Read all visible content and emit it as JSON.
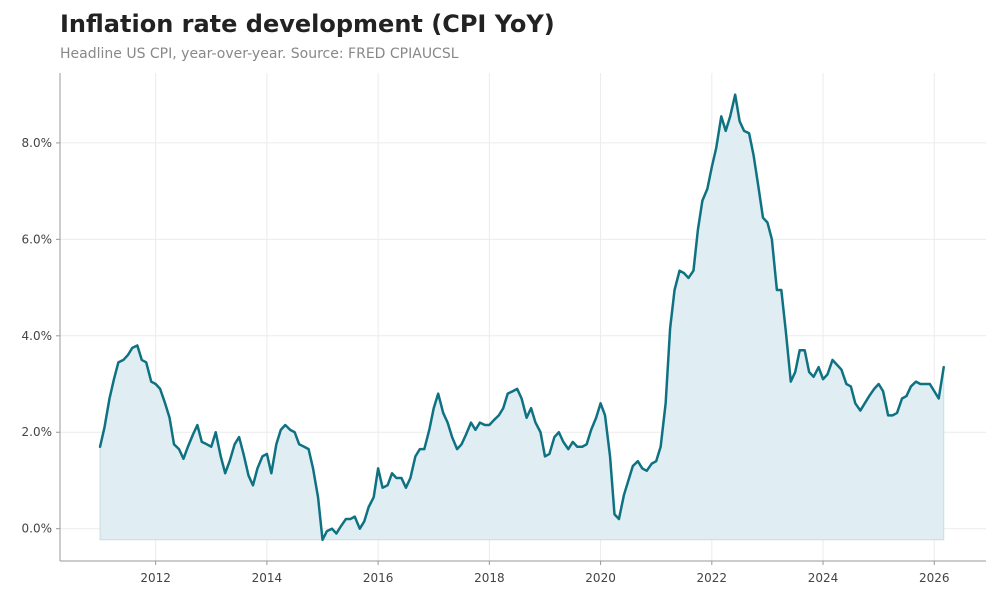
{
  "chart_data": {
    "type": "area",
    "title": "Inflation rate development (CPI YoY)",
    "subtitle": "Headline US CPI, year-over-year. Source: FRED CPIAUCSL",
    "xlabel": "",
    "ylabel": "",
    "xlim": [
      2010.28,
      2026.93
    ],
    "ylim": [
      -0.67,
      9.45
    ],
    "x_ticks": [
      2012,
      2014,
      2016,
      2018,
      2020,
      2022,
      2024,
      2026
    ],
    "x_tick_labels": [
      "2012",
      "2014",
      "2016",
      "2018",
      "2020",
      "2022",
      "2024",
      "2026"
    ],
    "y_ticks": [
      0,
      2,
      4,
      6,
      8
    ],
    "y_tick_labels": [
      "0.0%",
      "2.0%",
      "4.0%",
      "6.0%",
      "8.0%"
    ],
    "grid": true,
    "line_color": "#0f7282",
    "fill_color": "#e0edf2",
    "fill_baseline": -0.23,
    "series": [
      {
        "x": [
          2011.0,
          2011.08,
          2011.17,
          2011.25,
          2011.33,
          2011.42,
          2011.5,
          2011.58,
          2011.67,
          2011.75,
          2011.83,
          2011.92,
          2012.0,
          2012.08,
          2012.17,
          2012.25,
          2012.33,
          2012.42,
          2012.5,
          2012.58,
          2012.67,
          2012.75,
          2012.83,
          2012.92,
          2013.0,
          2013.08,
          2013.17,
          2013.25,
          2013.33,
          2013.42,
          2013.5,
          2013.58,
          2013.67,
          2013.75,
          2013.83,
          2013.92,
          2014.0,
          2014.08,
          2014.17,
          2014.25,
          2014.33,
          2014.42,
          2014.5,
          2014.58,
          2014.67,
          2014.75,
          2014.83,
          2014.92,
          2015.0,
          2015.08,
          2015.17,
          2015.25,
          2015.33,
          2015.42,
          2015.5,
          2015.58,
          2015.67,
          2015.75,
          2015.83,
          2015.92,
          2016.0,
          2016.08,
          2016.17,
          2016.25,
          2016.33,
          2016.42,
          2016.5,
          2016.58,
          2016.67,
          2016.75,
          2016.83,
          2016.92,
          2017.0,
          2017.08,
          2017.17,
          2017.25,
          2017.33,
          2017.42,
          2017.5,
          2017.58,
          2017.67,
          2017.75,
          2017.83,
          2017.92,
          2018.0,
          2018.08,
          2018.17,
          2018.25,
          2018.33,
          2018.42,
          2018.5,
          2018.58,
          2018.67,
          2018.75,
          2018.83,
          2018.92,
          2019.0,
          2019.08,
          2019.17,
          2019.25,
          2019.33,
          2019.42,
          2019.5,
          2019.58,
          2019.67,
          2019.75,
          2019.83,
          2019.92,
          2020.0,
          2020.08,
          2020.17,
          2020.25,
          2020.33,
          2020.42,
          2020.5,
          2020.58,
          2020.67,
          2020.75,
          2020.83,
          2020.92,
          2021.0,
          2021.08,
          2021.17,
          2021.25,
          2021.33,
          2021.42,
          2021.5,
          2021.58,
          2021.67,
          2021.75,
          2021.83,
          2021.92,
          2022.0,
          2022.08,
          2022.17,
          2022.25,
          2022.33,
          2022.42,
          2022.5,
          2022.58,
          2022.67,
          2022.75,
          2022.83,
          2022.92,
          2023.0,
          2023.08,
          2023.17,
          2023.25,
          2023.33,
          2023.42,
          2023.5,
          2023.58,
          2023.67,
          2023.75,
          2023.83,
          2023.92,
          2024.0,
          2024.08,
          2024.17,
          2024.25,
          2024.33,
          2024.42,
          2024.5,
          2024.58,
          2024.67,
          2024.75,
          2024.83,
          2024.92,
          2025.0,
          2025.08,
          2025.17,
          2025.25,
          2025.33,
          2025.42,
          2025.5,
          2025.58,
          2025.67,
          2025.75,
          2025.83,
          2025.92,
          2026.0,
          2026.08,
          2026.17
        ],
        "values": [
          1.7,
          2.1,
          2.7,
          3.1,
          3.45,
          3.5,
          3.6,
          3.75,
          3.8,
          3.5,
          3.45,
          3.05,
          3.0,
          2.9,
          2.6,
          2.3,
          1.75,
          1.65,
          1.45,
          1.7,
          1.95,
          2.15,
          1.8,
          1.75,
          1.7,
          2.0,
          1.5,
          1.15,
          1.4,
          1.75,
          1.9,
          1.55,
          1.1,
          0.9,
          1.25,
          1.5,
          1.55,
          1.15,
          1.75,
          2.05,
          2.15,
          2.05,
          2.0,
          1.75,
          1.7,
          1.65,
          1.25,
          0.65,
          -0.23,
          -0.05,
          0.0,
          -0.1,
          0.05,
          0.2,
          0.2,
          0.25,
          0.0,
          0.15,
          0.45,
          0.65,
          1.25,
          0.85,
          0.9,
          1.15,
          1.05,
          1.05,
          0.85,
          1.05,
          1.5,
          1.65,
          1.65,
          2.05,
          2.5,
          2.8,
          2.4,
          2.2,
          1.9,
          1.65,
          1.75,
          1.95,
          2.2,
          2.05,
          2.2,
          2.15,
          2.15,
          2.25,
          2.35,
          2.5,
          2.8,
          2.85,
          2.9,
          2.7,
          2.3,
          2.5,
          2.2,
          2.0,
          1.5,
          1.55,
          1.9,
          2.0,
          1.8,
          1.65,
          1.8,
          1.7,
          1.7,
          1.75,
          2.05,
          2.3,
          2.6,
          2.35,
          1.5,
          0.3,
          0.2,
          0.7,
          1.0,
          1.3,
          1.4,
          1.25,
          1.2,
          1.35,
          1.4,
          1.7,
          2.6,
          4.15,
          4.95,
          5.35,
          5.3,
          5.2,
          5.35,
          6.2,
          6.8,
          7.05,
          7.5,
          7.9,
          8.55,
          8.25,
          8.55,
          9.0,
          8.45,
          8.25,
          8.2,
          7.75,
          7.15,
          6.45,
          6.35,
          6.0,
          4.95,
          4.95,
          4.1,
          3.05,
          3.25,
          3.7,
          3.7,
          3.25,
          3.15,
          3.35,
          3.1,
          3.2,
          3.5,
          3.4,
          3.3,
          3.0,
          2.95,
          2.6,
          2.45,
          2.6,
          2.75,
          2.9,
          3.0,
          2.85,
          2.35,
          2.35,
          2.4,
          2.7,
          2.75,
          2.95,
          3.05,
          3.0,
          3.0,
          3.0,
          2.85,
          2.7,
          3.35
        ]
      }
    ]
  }
}
